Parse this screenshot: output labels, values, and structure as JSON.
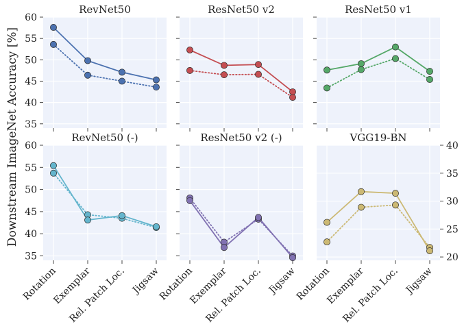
{
  "figure": {
    "ylabel": "Downstream ImageNet Accuracy [%]",
    "categories": [
      "Rotation",
      "Exemplar",
      "Rel. Patch Loc.",
      "Jigsaw"
    ]
  },
  "colors": {
    "panel_bg": "#eef2fb",
    "grid": "#ffffff",
    "tick": "#444444",
    "marker_edge": "#2a2a2a"
  },
  "chart_data": [
    {
      "type": "line",
      "title": "RevNet50",
      "categories": [
        "Rotation",
        "Exemplar",
        "Rel. Patch Loc.",
        "Jigsaw"
      ],
      "ylim": [
        34,
        60
      ],
      "yticks": [
        "35",
        "40",
        "45",
        "50",
        "55",
        "60"
      ],
      "ytick_side": "left",
      "color": "#4c72b0",
      "series": [
        {
          "style": "solid",
          "values": [
            57.6,
            49.8,
            47.1,
            45.3
          ]
        },
        {
          "style": "dotted",
          "values": [
            53.6,
            46.4,
            45.0,
            43.6
          ]
        }
      ]
    },
    {
      "type": "line",
      "title": "ResNet50 v2",
      "categories": [
        "Rotation",
        "Exemplar",
        "Rel. Patch Loc.",
        "Jigsaw"
      ],
      "ylim": [
        34,
        60
      ],
      "yticks": [],
      "ytick_side": "left",
      "color": "#c44e52",
      "series": [
        {
          "style": "solid",
          "values": [
            52.3,
            48.7,
            48.9,
            42.5
          ]
        },
        {
          "style": "dotted",
          "values": [
            47.5,
            46.5,
            46.6,
            41.2
          ]
        }
      ]
    },
    {
      "type": "line",
      "title": "ResNet50 v1",
      "categories": [
        "Rotation",
        "Exemplar",
        "Rel. Patch Loc.",
        "Jigsaw"
      ],
      "ylim": [
        34,
        60
      ],
      "yticks": [],
      "ytick_side": "left",
      "color": "#55a868",
      "series": [
        {
          "style": "solid",
          "values": [
            47.6,
            49.1,
            53.0,
            47.3
          ]
        },
        {
          "style": "dotted",
          "values": [
            43.4,
            47.7,
            50.3,
            45.4
          ]
        }
      ]
    },
    {
      "type": "line",
      "title": "RevNet50 (-)",
      "categories": [
        "Rotation",
        "Exemplar",
        "Rel. Patch Loc.",
        "Jigsaw"
      ],
      "ylim": [
        34,
        60
      ],
      "yticks": [
        "35",
        "40",
        "45",
        "50",
        "55",
        "60"
      ],
      "ytick_side": "left",
      "color": "#64b5cd",
      "series": [
        {
          "style": "solid",
          "values": [
            55.4,
            43.1,
            44.1,
            41.6
          ]
        },
        {
          "style": "dotted",
          "values": [
            53.7,
            44.3,
            43.5,
            41.4
          ]
        }
      ]
    },
    {
      "type": "line",
      "title": "ResNet50 v2 (-)",
      "categories": [
        "Rotation",
        "Exemplar",
        "Rel. Patch Loc.",
        "Jigsaw"
      ],
      "ylim": [
        34,
        60
      ],
      "yticks": [],
      "ytick_side": "left",
      "color": "#8172b2",
      "series": [
        {
          "style": "solid",
          "values": [
            47.5,
            36.9,
            43.7,
            34.6
          ]
        },
        {
          "style": "dotted",
          "values": [
            48.1,
            38.1,
            43.3,
            35.0
          ]
        }
      ]
    },
    {
      "type": "line",
      "title": "VGG19-BN",
      "categories": [
        "Rotation",
        "Exemplar",
        "Rel. Patch Loc.",
        "Jigsaw"
      ],
      "ylim": [
        19.4,
        40
      ],
      "yticks": [
        "20",
        "25",
        "30",
        "35",
        "40"
      ],
      "ytick_side": "right",
      "color": "#ccb974",
      "series": [
        {
          "style": "solid",
          "values": [
            26.2,
            31.7,
            31.4,
            21.1
          ]
        },
        {
          "style": "dotted",
          "values": [
            22.7,
            28.9,
            29.3,
            21.7
          ]
        }
      ]
    }
  ]
}
